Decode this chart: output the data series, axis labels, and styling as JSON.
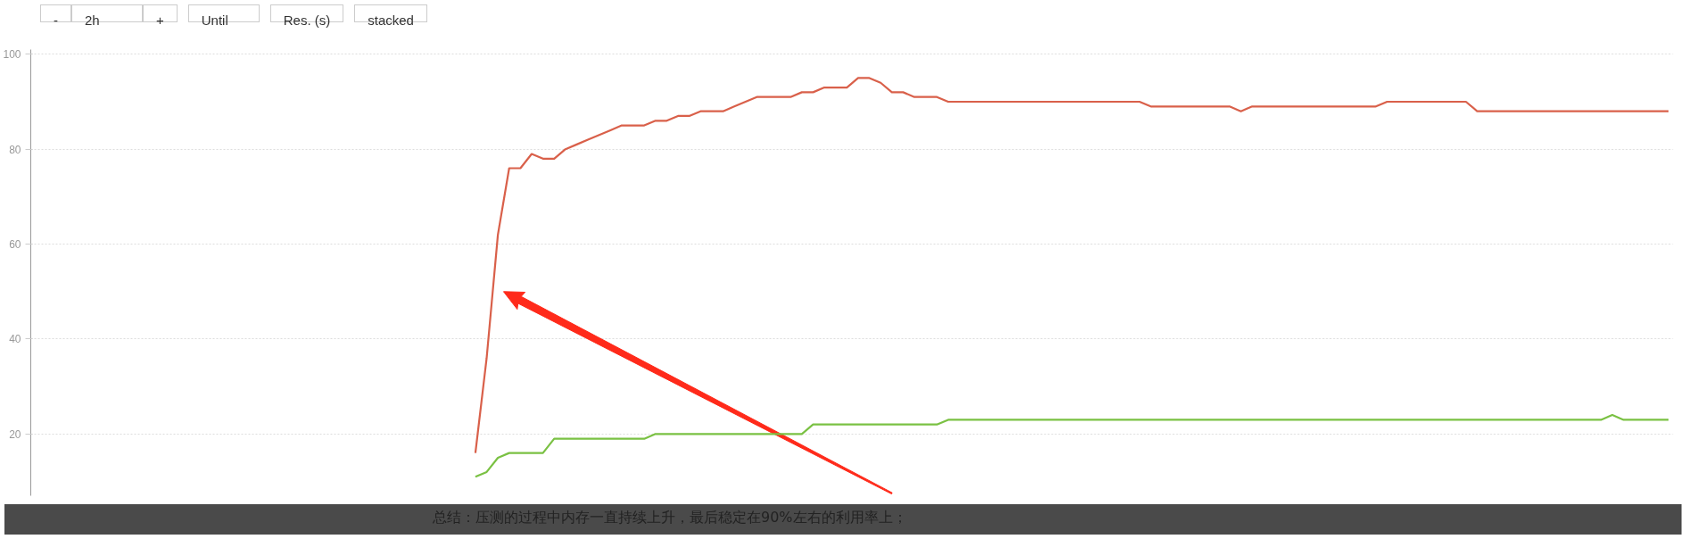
{
  "chart_data": {
    "type": "line",
    "categories": [
      null,
      null,
      null,
      null,
      null,
      null,
      null,
      null,
      null,
      null,
      null,
      null,
      null,
      null,
      null,
      null,
      null,
      null,
      null,
      null,
      null,
      null,
      null,
      null,
      null,
      null,
      null,
      null,
      null,
      null,
      null,
      null,
      null,
      null,
      null,
      null,
      null,
      null,
      null,
      null,
      null,
      null,
      null,
      null,
      null,
      null,
      null,
      null,
      null,
      null,
      null,
      null,
      null,
      null,
      null,
      null,
      null,
      null,
      null,
      null,
      null,
      null,
      null,
      null,
      null,
      null,
      null,
      null,
      null,
      null,
      null,
      null,
      null,
      null,
      null,
      null,
      null,
      null,
      null,
      null,
      null,
      null,
      null,
      null,
      null,
      null,
      null,
      null,
      null,
      null,
      null,
      null,
      null,
      null,
      null,
      null,
      null,
      null,
      null,
      null,
      null,
      null,
      null,
      null,
      null,
      null,
      null,
      null,
      null,
      null,
      null,
      null,
      null,
      null,
      null,
      null,
      null,
      null,
      null,
      null,
      null,
      null,
      null,
      null,
      null,
      null,
      null,
      null,
      null,
      null,
      null,
      null,
      null,
      null,
      null,
      null,
      null,
      null,
      null,
      null,
      null,
      null,
      null
    ],
    "series": [
      {
        "color": "#d9604a",
        "values": [
          null,
          null,
          null,
          null,
          null,
          null,
          null,
          null,
          null,
          null,
          null,
          null,
          null,
          null,
          null,
          null,
          null,
          null,
          null,
          null,
          null,
          null,
          null,
          null,
          null,
          null,
          null,
          null,
          null,
          null,
          null,
          null,
          null,
          null,
          null,
          null,
          16,
          36,
          62,
          76,
          76,
          79,
          78,
          78,
          80,
          81,
          82,
          83,
          84,
          85,
          85,
          85,
          86,
          86,
          87,
          87,
          88,
          88,
          88,
          89,
          90,
          91,
          91,
          91,
          91,
          92,
          92,
          93,
          93,
          93,
          95,
          95,
          94,
          92,
          92,
          91,
          91,
          91,
          90,
          90,
          90,
          90,
          90,
          90,
          90,
          90,
          90,
          90,
          90,
          90,
          90,
          90,
          90,
          90,
          90,
          90,
          89,
          89,
          89,
          89,
          89,
          89,
          89,
          89,
          88,
          89,
          89,
          89,
          89,
          89,
          89,
          89,
          89,
          89,
          89,
          89,
          89,
          90,
          90,
          90,
          90,
          90,
          90,
          90,
          90,
          88,
          88,
          88,
          88,
          88,
          88,
          88,
          88,
          88,
          88,
          88,
          88,
          88,
          88,
          88,
          88,
          88,
          88
        ]
      },
      {
        "color": "#7ac143",
        "values": [
          null,
          null,
          null,
          null,
          null,
          null,
          null,
          null,
          null,
          null,
          null,
          null,
          null,
          null,
          null,
          null,
          null,
          null,
          null,
          null,
          null,
          null,
          null,
          null,
          null,
          null,
          null,
          null,
          null,
          null,
          null,
          null,
          null,
          null,
          null,
          null,
          11,
          12,
          15,
          16,
          16,
          16,
          16,
          19,
          19,
          19,
          19,
          19,
          19,
          19,
          19,
          19,
          20,
          20,
          20,
          20,
          20,
          20,
          20,
          20,
          20,
          20,
          20,
          20,
          20,
          20,
          22,
          22,
          22,
          22,
          22,
          22,
          22,
          22,
          22,
          22,
          22,
          22,
          23,
          23,
          23,
          23,
          23,
          23,
          23,
          23,
          23,
          23,
          23,
          23,
          23,
          23,
          23,
          23,
          23,
          23,
          23,
          23,
          23,
          23,
          23,
          23,
          23,
          23,
          23,
          23,
          23,
          23,
          23,
          23,
          23,
          23,
          23,
          23,
          23,
          23,
          23,
          23,
          23,
          23,
          23,
          23,
          23,
          23,
          23,
          23,
          23,
          23,
          23,
          23,
          23,
          23,
          23,
          23,
          23,
          23,
          23,
          24,
          23,
          23,
          23,
          23,
          23
        ]
      }
    ],
    "ylim": [
      7,
      101
    ],
    "yticks": [
      20,
      40,
      60,
      80,
      100
    ],
    "grid": "y",
    "tick_labels": "y",
    "annotations": [
      "-",
      "2h",
      "+",
      "Until",
      "Res. (s)",
      "stacked",
      "总结：压测的过程中内存一直持续上升，最后稳定在90%左右的利用率上；"
    ]
  }
}
